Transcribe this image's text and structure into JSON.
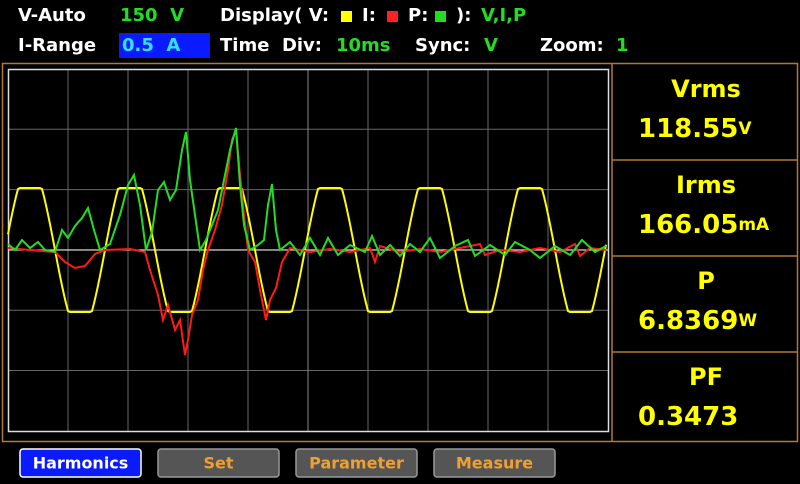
{
  "status": {
    "v_range": {
      "label": "V-Auto",
      "value": "150  V"
    },
    "display": {
      "label": "Display( V:",
      "i": "I:",
      "p": "P:",
      "close": "):",
      "value": "V,I,P"
    },
    "i_range": {
      "label": "I-Range",
      "value": "0.5  A"
    },
    "time_div": {
      "label": "Time  Div:",
      "value": "10ms"
    },
    "sync": {
      "label": "Sync:",
      "value": "V"
    },
    "zoom": {
      "label": "Zoom:",
      "value": "1"
    }
  },
  "measurements": [
    {
      "name": "Vrms",
      "value": "118.55",
      "unit": "V"
    },
    {
      "name": "Irms",
      "value": "166.05",
      "unit": "mA"
    },
    {
      "name": "P",
      "value": "6.8369",
      "unit": "W"
    },
    {
      "name": "PF",
      "value": "0.3473"
    }
  ],
  "buttons": [
    "Harmonics",
    "Set",
    "Parameter",
    "Measure"
  ]
}
